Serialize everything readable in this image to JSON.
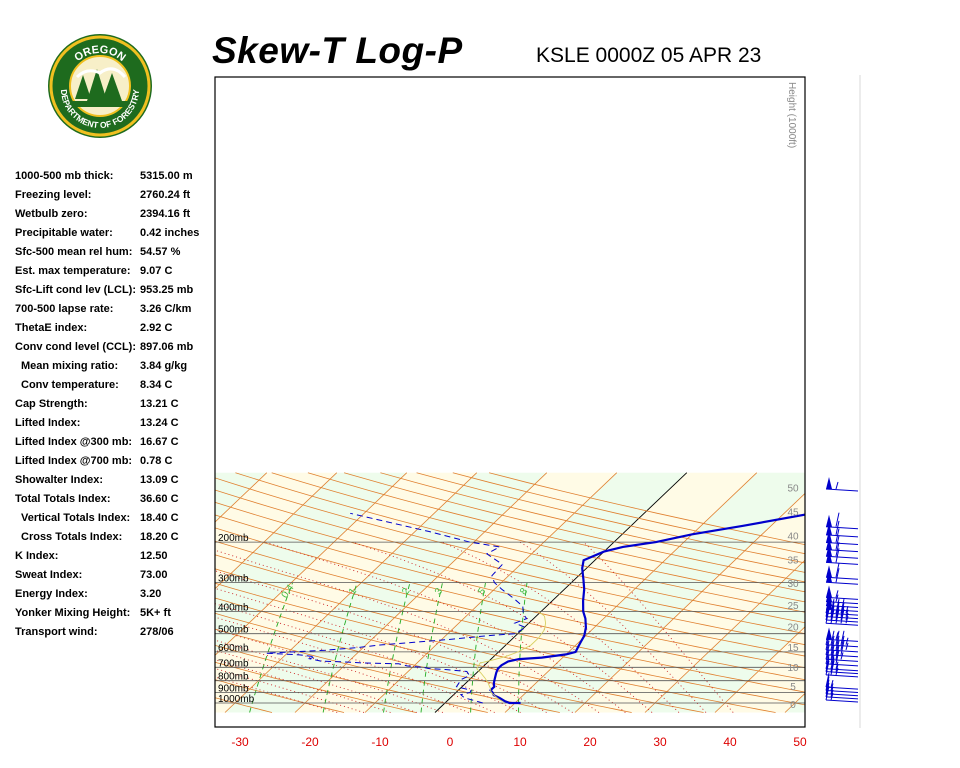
{
  "header": {
    "title": "Skew-T Log-P",
    "station": "KSLE 0000Z 05 APR 23"
  },
  "logo": {
    "text_top": "OREGON",
    "text_bottom": "DEPARTMENT OF FORESTRY"
  },
  "indices": [
    {
      "label": "1000-500 mb thick:",
      "value": "5315.00 m",
      "indent": false
    },
    {
      "label": "Freezing level:",
      "value": "2760.24 ft",
      "indent": false
    },
    {
      "label": "Wetbulb zero:",
      "value": "2394.16 ft",
      "indent": false
    },
    {
      "label": "Precipitable water:",
      "value": "0.42 inches",
      "indent": false
    },
    {
      "label": "Sfc-500 mean rel hum:",
      "value": "54.57 %",
      "indent": false
    },
    {
      "label": "Est. max temperature:",
      "value": "9.07 C",
      "indent": false
    },
    {
      "label": "Sfc-Lift cond lev (LCL):",
      "value": "953.25 mb",
      "indent": false
    },
    {
      "label": "700-500 lapse rate:",
      "value": "3.26 C/km",
      "indent": false
    },
    {
      "label": "ThetaE index:",
      "value": "2.92 C",
      "indent": false
    },
    {
      "label": "Conv cond level (CCL):",
      "value": "897.06 mb",
      "indent": false
    },
    {
      "label": "Mean mixing ratio:",
      "value": "3.84 g/kg",
      "indent": true
    },
    {
      "label": "Conv temperature:",
      "value": "8.34 C",
      "indent": true
    },
    {
      "label": "Cap Strength:",
      "value": "13.21 C",
      "indent": false
    },
    {
      "label": "Lifted Index:",
      "value": "13.24 C",
      "indent": false
    },
    {
      "label": "Lifted Index @300 mb:",
      "value": "16.67 C",
      "indent": false
    },
    {
      "label": "Lifted Index @700 mb:",
      "value": "0.78 C",
      "indent": false
    },
    {
      "label": "Showalter Index:",
      "value": "13.09 C",
      "indent": false
    },
    {
      "label": "Total Totals Index:",
      "value": "36.60 C",
      "indent": false
    },
    {
      "label": "Vertical Totals Index:",
      "value": "18.40 C",
      "indent": true
    },
    {
      "label": "Cross Totals Index:",
      "value": "18.20 C",
      "indent": true
    },
    {
      "label": "K Index:",
      "value": "12.50",
      "indent": false
    },
    {
      "label": "Sweat Index:",
      "value": "73.00",
      "indent": false
    },
    {
      "label": "Energy Index:",
      "value": "3.20",
      "indent": false
    },
    {
      "label": "Yonker Mixing Height:",
      "value": "5K+ ft",
      "indent": false
    },
    {
      "label": "Transport wind:",
      "value": "278/06",
      "indent": false
    }
  ],
  "chart_data": {
    "type": "line",
    "x_ticks": [
      "-30",
      "-20",
      "-10",
      "0",
      "10",
      "20",
      "30",
      "40",
      "50"
    ],
    "pressure_levels": [
      {
        "p": 1000,
        "label": "1000mb"
      },
      {
        "p": 900,
        "label": "900mb"
      },
      {
        "p": 800,
        "label": "800mb"
      },
      {
        "p": 700,
        "label": "700mb"
      },
      {
        "p": 600,
        "label": "600mb"
      },
      {
        "p": 500,
        "label": "500mb"
      },
      {
        "p": 400,
        "label": "400mb"
      },
      {
        "p": 300,
        "label": "300mb"
      },
      {
        "p": 200,
        "label": "200mb"
      }
    ],
    "height_axis_label": "Height (1000ft)",
    "height_ticks": [
      {
        "kft": 0,
        "p": 1012
      },
      {
        "kft": 5,
        "p": 842
      },
      {
        "kft": 10,
        "p": 697
      },
      {
        "kft": 15,
        "p": 572
      },
      {
        "kft": 20,
        "p": 466
      },
      {
        "kft": 25,
        "p": 376
      },
      {
        "kft": 30,
        "p": 301
      },
      {
        "kft": 35,
        "p": 238
      },
      {
        "kft": 40,
        "p": 187
      },
      {
        "kft": 45,
        "p": 147
      },
      {
        "kft": 50,
        "p": 116
      }
    ],
    "mixing_ratio_labels": [
      "0.4",
      "1",
      "2",
      "3",
      "5",
      "8"
    ],
    "mixing_ratio_values": [
      0.4,
      1,
      2,
      3,
      5,
      8
    ],
    "series": [
      {
        "name": "",
        "style": "solid",
        "color": "#0000cc",
        "points": [
          [
            10.8,
            1000
          ],
          [
            9.2,
            1000
          ],
          [
            8.2,
            980
          ],
          [
            7.0,
            950
          ],
          [
            5.8,
            925
          ],
          [
            5.2,
            900
          ],
          [
            4.6,
            880
          ],
          [
            4.6,
            850
          ],
          [
            4.0,
            820
          ],
          [
            3.4,
            780
          ],
          [
            2.8,
            740
          ],
          [
            2.4,
            710
          ],
          [
            2.4,
            685
          ],
          [
            2.8,
            660
          ],
          [
            4.0,
            645
          ],
          [
            7.0,
            635
          ],
          [
            10.0,
            615
          ],
          [
            11.0,
            600
          ],
          [
            10.6,
            570
          ],
          [
            10.2,
            540
          ],
          [
            9.8,
            510
          ],
          [
            8.8,
            470
          ],
          [
            7.4,
            430
          ],
          [
            6.0,
            400
          ],
          [
            4.4,
            360
          ],
          [
            2.8,
            320
          ],
          [
            1.2,
            290
          ],
          [
            -0.6,
            260
          ],
          [
            -1.6,
            240
          ],
          [
            0.0,
            220
          ],
          [
            2.0,
            210
          ],
          [
            6.0,
            200
          ],
          [
            10.0,
            185
          ],
          [
            16.0,
            170
          ],
          [
            24.0,
            150
          ]
        ]
      },
      {
        "name": "",
        "style": "dashed",
        "color": "#0000cc",
        "points": [
          [
            5.4,
            1000
          ],
          [
            3.8,
            975
          ],
          [
            2.0,
            950
          ],
          [
            1.0,
            920
          ],
          [
            2.0,
            900
          ],
          [
            1.8,
            880
          ],
          [
            -0.8,
            850
          ],
          [
            -1.0,
            820
          ],
          [
            -1.2,
            790
          ],
          [
            -0.6,
            760
          ],
          [
            -1.6,
            730
          ],
          [
            -5.0,
            715
          ],
          [
            -7.5,
            708
          ],
          [
            -8.5,
            700
          ],
          [
            -11.0,
            690
          ],
          [
            -12.5,
            676
          ],
          [
            -17.5,
            670
          ],
          [
            -21.0,
            662
          ],
          [
            -24.0,
            658
          ],
          [
            -26.0,
            642
          ],
          [
            -25.5,
            630
          ],
          [
            -28.0,
            618
          ],
          [
            -33.0,
            608
          ],
          [
            -25.0,
            590
          ],
          [
            -21.0,
            575
          ],
          [
            -18.0,
            560
          ],
          [
            -13.5,
            545
          ],
          [
            -9.0,
            530
          ],
          [
            -4.0,
            510
          ],
          [
            -0.5,
            500
          ],
          [
            0.2,
            470
          ],
          [
            -2.0,
            450
          ],
          [
            -1.0,
            430
          ],
          [
            -2.2,
            410
          ],
          [
            -3.4,
            380
          ],
          [
            -6.0,
            350
          ],
          [
            -9.0,
            320
          ],
          [
            -11.0,
            300
          ],
          [
            -12.4,
            280
          ],
          [
            -12.6,
            250
          ],
          [
            -16.4,
            225
          ],
          [
            -15.6,
            210
          ],
          [
            -20.6,
            200
          ],
          [
            -28.0,
            180
          ],
          [
            -42.0,
            150
          ]
        ]
      },
      {
        "name": "",
        "style": "thin",
        "color": "#d8d060",
        "points": [
          [
            8.0,
            985
          ],
          [
            7.0,
            960
          ],
          [
            6.0,
            930
          ],
          [
            5.0,
            900
          ],
          [
            4.2,
            860
          ],
          [
            3.2,
            820
          ],
          [
            2.0,
            780
          ],
          [
            0.6,
            740
          ],
          [
            -0.6,
            710
          ],
          [
            -0.8,
            690
          ],
          [
            -1.0,
            670
          ],
          [
            0.4,
            650
          ],
          [
            1.6,
            630
          ],
          [
            2.8,
            600
          ],
          [
            3.6,
            560
          ],
          [
            3.6,
            520
          ],
          [
            3.2,
            480
          ],
          [
            2.4,
            450
          ],
          [
            1.2,
            420
          ],
          [
            -0.4,
            400
          ]
        ]
      }
    ],
    "wind_barbs": [
      {
        "p": 990,
        "speed": 15
      },
      {
        "p": 960,
        "speed": 15
      },
      {
        "p": 930,
        "speed": 15
      },
      {
        "p": 900,
        "speed": 15
      },
      {
        "p": 870,
        "speed": 15
      },
      {
        "p": 770,
        "speed": 25
      },
      {
        "p": 745,
        "speed": 25
      },
      {
        "p": 725,
        "speed": 25
      },
      {
        "p": 690,
        "speed": 30
      },
      {
        "p": 660,
        "speed": 35
      },
      {
        "p": 630,
        "speed": 40
      },
      {
        "p": 600,
        "speed": 45
      },
      {
        "p": 570,
        "speed": 45
      },
      {
        "p": 540,
        "speed": 55
      },
      {
        "p": 460,
        "speed": 45
      },
      {
        "p": 445,
        "speed": 45
      },
      {
        "p": 430,
        "speed": 45
      },
      {
        "p": 415,
        "speed": 45
      },
      {
        "p": 400,
        "speed": 50
      },
      {
        "p": 385,
        "speed": 50
      },
      {
        "p": 370,
        "speed": 55
      },
      {
        "p": 355,
        "speed": 55
      },
      {
        "p": 305,
        "speed": 60
      },
      {
        "p": 290,
        "speed": 60
      },
      {
        "p": 250,
        "speed": 60
      },
      {
        "p": 235,
        "speed": 60
      },
      {
        "p": 220,
        "speed": 60
      },
      {
        "p": 205,
        "speed": 60
      },
      {
        "p": 190,
        "speed": 60
      },
      {
        "p": 175,
        "speed": 60
      },
      {
        "p": 120,
        "speed": 55
      }
    ]
  },
  "colors": {
    "isotherm": "#e08030",
    "dry_adiabat": "#e08030",
    "moist_adiabat": "#cc2222",
    "mixing_ratio": "#22aa22",
    "profile": "#0000cc",
    "band_yellow": "#fffbe6",
    "band_green": "#eefcec",
    "axis_text": "#dd0000"
  }
}
